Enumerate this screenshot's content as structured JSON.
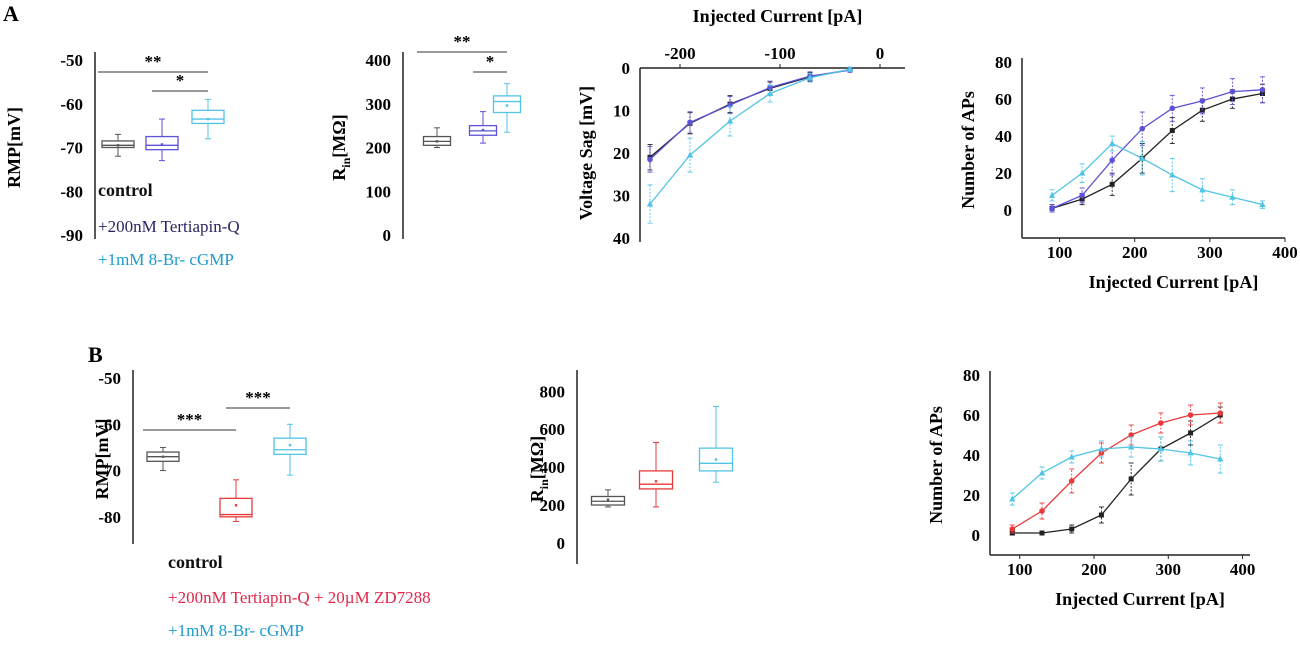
{
  "figure": {
    "panel_a_label": "A",
    "panel_b_label": "B",
    "colors": {
      "control": "#555555",
      "control_line": "#222222",
      "tertiapin": "#5b52d6",
      "tertiapin_dark": "#2a2560",
      "cgmp": "#52c4e6",
      "cgmp_text": "#1a9ad0",
      "zd": "#e83a3a",
      "zd_text": "#e0284a"
    }
  },
  "chart_data": [
    {
      "id": "a1",
      "type": "box",
      "ylabel_main": "RMP",
      "ylabel_unit": "[mV]",
      "ylim": [
        -90,
        -50
      ],
      "yticks": [
        -50,
        -60,
        -70,
        -80,
        -90
      ],
      "ytick_labels": [
        "-50",
        "-60",
        "-70",
        "-80",
        "-90"
      ],
      "boxes": [
        {
          "name": "control",
          "color": "control",
          "whisker_low": -72,
          "q1": -70,
          "median": -69.5,
          "q3": -68.5,
          "whisker_high": -67,
          "mean": -69.5
        },
        {
          "name": "+200nM Tertiapin-Q",
          "color": "tertiapin",
          "whisker_low": -73,
          "q1": -70.5,
          "median": -69.5,
          "q3": -67.5,
          "whisker_high": -63.5,
          "mean": -69.3
        },
        {
          "name": "+1mM 8-Br- cGMP",
          "color": "cgmp",
          "whisker_low": -68,
          "q1": -64.5,
          "median": -63.5,
          "q3": -61.5,
          "whisker_high": -59,
          "mean": -63.5
        }
      ],
      "significance": [
        {
          "from": 0,
          "to": 2,
          "label": "**",
          "level": 0
        },
        {
          "from": 1,
          "to": 2,
          "label": "*",
          "level": 1
        }
      ],
      "legend": [
        {
          "label": "control",
          "style": "bold",
          "color": "#111111"
        },
        {
          "label": "+200nM Tertiapin-Q",
          "style": "normal",
          "color": "#2a2560"
        },
        {
          "label": "+1mM 8-Br- cGMP",
          "style": "normal",
          "color": "#1a9ad0"
        }
      ]
    },
    {
      "id": "a2",
      "type": "box",
      "ylabel_main": "R",
      "ylabel_sub": "in",
      "ylabel_unit": "[MΩ]",
      "ylim": [
        0,
        400
      ],
      "yticks": [
        400,
        300,
        200,
        100,
        0
      ],
      "ytick_labels": [
        "400",
        "300",
        "200",
        "100",
        "0"
      ],
      "boxes": [
        {
          "name": "control",
          "color": "control",
          "whisker_low": 200,
          "q1": 205,
          "median": 214,
          "q3": 225,
          "whisker_high": 245,
          "mean": 214
        },
        {
          "name": "+200nM Tertiapin-Q",
          "color": "tertiapin",
          "whisker_low": 210,
          "q1": 228,
          "median": 238,
          "q3": 250,
          "whisker_high": 282,
          "mean": 240
        },
        {
          "name": "+1mM 8-Br- cGMP",
          "color": "cgmp",
          "whisker_low": 235,
          "q1": 280,
          "median": 305,
          "q3": 318,
          "whisker_high": 346,
          "mean": 296
        }
      ],
      "significance": [
        {
          "from": 0,
          "to": 2,
          "label": "**",
          "level": 0
        },
        {
          "from": 1,
          "to": 2,
          "label": "*",
          "level": 1
        }
      ]
    },
    {
      "id": "a3",
      "type": "line",
      "title": "",
      "xlabel": "Injected Current [pA]",
      "ylabel": "Voltage Sag [mV]",
      "xlim": [
        -240,
        25
      ],
      "ylim": [
        0,
        40
      ],
      "y_inverted": true,
      "xaxis_position": "top",
      "xticks": [
        -200,
        -100,
        0
      ],
      "xtick_labels": [
        "-200",
        "-100",
        "0"
      ],
      "yticks": [
        0,
        10,
        20,
        30,
        40
      ],
      "ytick_labels": [
        "0",
        "10",
        "20",
        "30",
        "40"
      ],
      "series": [
        {
          "name": "control",
          "color": "control_line",
          "marker": "square",
          "x": [
            -230,
            -190,
            -150,
            -110,
            -70,
            -30
          ],
          "y": [
            21,
            13,
            8.5,
            4.8,
            2.1,
            0.4
          ],
          "err": [
            3,
            2.5,
            2,
            1.5,
            1,
            0.5
          ]
        },
        {
          "name": "+200nM Tertiapin-Q",
          "color": "tertiapin",
          "marker": "circle",
          "x": [
            -230,
            -190,
            -150,
            -110,
            -70,
            -30
          ],
          "y": [
            21.5,
            12.8,
            8.7,
            4.6,
            1.9,
            0.5
          ],
          "err": [
            3,
            2.5,
            2,
            1.5,
            1,
            0.5
          ]
        },
        {
          "name": "+1mM 8-Br- cGMP",
          "color": "cgmp",
          "marker": "triangle",
          "x": [
            -230,
            -190,
            -150,
            -110,
            -70,
            -30
          ],
          "y": [
            32,
            20.5,
            12.5,
            6,
            2.3,
            0.3
          ],
          "err": [
            4.5,
            4,
            3.5,
            2,
            1,
            0.5
          ]
        }
      ]
    },
    {
      "id": "a4",
      "type": "line",
      "xlabel": "Injected Current [pA]",
      "ylabel": "Number of APs",
      "xlim": [
        50,
        400
      ],
      "ylim": [
        -15,
        80
      ],
      "xticks": [
        100,
        200,
        300,
        400
      ],
      "xtick_labels": [
        "100",
        "200",
        "300",
        "400"
      ],
      "yticks": [
        0,
        20,
        40,
        60,
        80
      ],
      "ytick_labels": [
        "0",
        "20",
        "40",
        "60",
        "80"
      ],
      "series": [
        {
          "name": "control",
          "color": "control_line",
          "marker": "square",
          "x": [
            90,
            130,
            170,
            210,
            250,
            290,
            330,
            370
          ],
          "y": [
            1,
            6,
            14,
            28,
            43,
            54,
            60,
            63
          ],
          "err": [
            2,
            3,
            6,
            8,
            7,
            6,
            5,
            5
          ]
        },
        {
          "name": "+200nM Tertiapin-Q",
          "color": "tertiapin",
          "marker": "circle",
          "x": [
            90,
            130,
            170,
            210,
            250,
            290,
            330,
            370
          ],
          "y": [
            1,
            8,
            27,
            44,
            55,
            59,
            64,
            65
          ],
          "err": [
            2,
            4,
            8,
            9,
            7,
            7,
            7,
            7
          ]
        },
        {
          "name": "+1mM 8-Br- cGMP",
          "color": "cgmp",
          "marker": "triangle",
          "x": [
            90,
            130,
            170,
            210,
            250,
            290,
            330,
            370
          ],
          "y": [
            8,
            20,
            36,
            28,
            19,
            11,
            7,
            3
          ],
          "err": [
            3,
            5,
            4,
            9,
            9,
            6,
            4,
            2
          ]
        }
      ]
    },
    {
      "id": "b1",
      "type": "box",
      "ylabel_main": "RMP",
      "ylabel_unit": "[mV]",
      "ylim": [
        -85,
        -50
      ],
      "yticks": [
        -50,
        -60,
        -70,
        -80
      ],
      "ytick_labels": [
        "-50",
        "-60",
        "-70",
        "-80"
      ],
      "boxes": [
        {
          "name": "control",
          "color": "control",
          "whisker_low": -70,
          "q1": -68,
          "median": -67,
          "q3": -66,
          "whisker_high": -65,
          "mean": -67
        },
        {
          "name": "+200nM Tertiapin-Q + 20µM ZD7288",
          "color": "zd",
          "whisker_low": -81,
          "q1": -80,
          "median": -79.5,
          "q3": -76,
          "whisker_high": -72,
          "mean": -77.5
        },
        {
          "name": "+1mM 8-Br- cGMP",
          "color": "cgmp",
          "whisker_low": -71,
          "q1": -66.5,
          "median": -65.5,
          "q3": -63,
          "whisker_high": -60,
          "mean": -64.5
        }
      ],
      "significance": [
        {
          "from": 0,
          "to": 1,
          "label": "***",
          "level": 0
        },
        {
          "from": 1,
          "to": 2,
          "label": "***",
          "level": 1
        }
      ],
      "legend": [
        {
          "label": "control",
          "style": "bold",
          "color": "#111111"
        },
        {
          "label": "+200nM Tertiapin-Q + 20µM ZD7288",
          "style": "normal",
          "color": "#e0284a"
        },
        {
          "label": "+1mM 8-Br- cGMP",
          "style": "normal",
          "color": "#1a9ad0"
        }
      ]
    },
    {
      "id": "b2",
      "type": "box",
      "ylabel_main": "R",
      "ylabel_sub": "in",
      "ylabel_unit": "[MΩ]",
      "ylim": [
        -90,
        870
      ],
      "yticks": [
        800,
        600,
        400,
        200,
        0
      ],
      "ytick_labels": [
        "800",
        "600",
        "400",
        "200",
        "0"
      ],
      "boxes": [
        {
          "name": "control",
          "color": "control",
          "whisker_low": 190,
          "q1": 200,
          "median": 220,
          "q3": 245,
          "whisker_high": 280,
          "mean": 228
        },
        {
          "name": "+200nM Tertiapin-Q + 20µM ZD7288",
          "color": "zd",
          "whisker_low": 190,
          "q1": 285,
          "median": 310,
          "q3": 380,
          "whisker_high": 530,
          "mean": 325
        },
        {
          "name": "+1mM 8-Br- cGMP",
          "color": "cgmp",
          "whisker_low": 320,
          "q1": 380,
          "median": 420,
          "q3": 500,
          "whisker_high": 720,
          "mean": 440
        }
      ],
      "significance": []
    },
    {
      "id": "b3",
      "type": "line",
      "xlabel": "Injected Current [pA]",
      "ylabel": "Number of APs",
      "xlim": [
        60,
        410
      ],
      "ylim": [
        -10,
        80
      ],
      "xticks": [
        100,
        200,
        300,
        400
      ],
      "xtick_labels": [
        "100",
        "200",
        "300",
        "400"
      ],
      "yticks": [
        0,
        20,
        40,
        60,
        80
      ],
      "ytick_labels": [
        "0",
        "20",
        "40",
        "60",
        "80"
      ],
      "series": [
        {
          "name": "control",
          "color": "control_line",
          "marker": "square",
          "x": [
            90,
            130,
            170,
            210,
            250,
            290,
            330,
            370
          ],
          "y": [
            1,
            1,
            3,
            10,
            28,
            43,
            51,
            60
          ],
          "err": [
            1,
            1,
            2,
            4,
            8,
            6,
            6,
            4
          ]
        },
        {
          "name": "+200nM Tertiapin-Q + 20µM ZD7288",
          "color": "zd",
          "marker": "circle",
          "x": [
            90,
            130,
            170,
            210,
            250,
            290,
            330,
            370
          ],
          "y": [
            3,
            12,
            27,
            41,
            50,
            56,
            60,
            61
          ],
          "err": [
            2,
            4,
            6,
            5,
            5,
            5,
            5,
            5
          ]
        },
        {
          "name": "+1mM 8-Br- cGMP",
          "color": "cgmp",
          "marker": "triangle",
          "x": [
            90,
            130,
            170,
            210,
            250,
            290,
            330,
            370
          ],
          "y": [
            18,
            31,
            39,
            43,
            44,
            43,
            41,
            38
          ],
          "err": [
            3,
            3,
            3,
            4,
            5,
            6,
            6,
            7
          ]
        }
      ]
    }
  ]
}
